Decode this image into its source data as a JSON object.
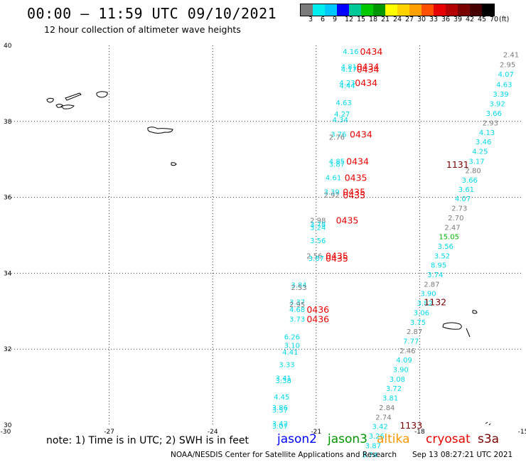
{
  "title": "00:00 – 11:59 UTC 09/10/2021",
  "subtitle": "12 hour collection of altimeter wave heights",
  "legend": {
    "labels": [
      "3",
      "6",
      "9",
      "12",
      "15",
      "18",
      "21",
      "24",
      "27",
      "30",
      "33",
      "36",
      "39",
      "42",
      "45",
      "70",
      "(ft)"
    ],
    "colors": [
      "#7a7a7a",
      "#00eeee",
      "#00c8ff",
      "#0000ff",
      "#00c896",
      "#00c800",
      "#009600",
      "#ffff00",
      "#ffd200",
      "#ffa000",
      "#ff5000",
      "#e60000",
      "#b40000",
      "#780000",
      "#460000",
      "#000000"
    ]
  },
  "note": "note:  1) Time is in UTC;  2) SWH is in feet",
  "satellites": [
    {
      "name": "jason2",
      "color": "#0000ff"
    },
    {
      "name": "jason3",
      "color": "#009600"
    },
    {
      "name": "altika",
      "color": "#ff9600"
    },
    {
      "name": "cryosat",
      "color": "#e60000"
    },
    {
      "name": "s3a",
      "color": "#780000"
    }
  ],
  "credit": "NOAA/NESDIS Center for Satellite Applications and Research",
  "timestamp": "Sep 13 08:27:21 UTC 2021",
  "chart_data": {
    "type": "scatter",
    "xlim": [
      -30,
      -15
    ],
    "ylim": [
      30,
      40
    ],
    "x_ticks": [
      -30,
      -27,
      -24,
      -21,
      -18,
      -15
    ],
    "y_ticks": [
      30,
      32,
      34,
      36,
      38,
      40
    ],
    "grid": true,
    "colors": {
      "cyan": "#00d8e8",
      "gray": "#7a7a7a",
      "green": "#00b400",
      "red": "#e60000",
      "darkred": "#780000"
    },
    "wave_heights": [
      {
        "lon": -20.0,
        "lat": 39.85,
        "v": "4.16",
        "c": "cyan"
      },
      {
        "lon": -20.05,
        "lat": 39.45,
        "v": "4.81",
        "c": "cyan"
      },
      {
        "lon": -20.05,
        "lat": 39.38,
        "v": "4.17",
        "c": "cyan"
      },
      {
        "lon": -20.1,
        "lat": 39.03,
        "v": "4.23",
        "c": "cyan"
      },
      {
        "lon": -20.1,
        "lat": 38.95,
        "v": "4.44",
        "c": "cyan"
      },
      {
        "lon": -20.2,
        "lat": 38.5,
        "v": "4.63",
        "c": "cyan"
      },
      {
        "lon": -20.25,
        "lat": 38.2,
        "v": "4.27",
        "c": "cyan"
      },
      {
        "lon": -20.3,
        "lat": 38.05,
        "v": "4.34",
        "c": "cyan"
      },
      {
        "lon": -20.35,
        "lat": 37.67,
        "v": "3.76",
        "c": "cyan"
      },
      {
        "lon": -20.4,
        "lat": 37.59,
        "v": "2.76",
        "c": "gray"
      },
      {
        "lon": -20.4,
        "lat": 36.96,
        "v": "4.85",
        "c": "cyan"
      },
      {
        "lon": -20.4,
        "lat": 36.88,
        "v": "3.87",
        "c": "cyan"
      },
      {
        "lon": -20.5,
        "lat": 36.53,
        "v": "4.61",
        "c": "cyan"
      },
      {
        "lon": -20.55,
        "lat": 36.15,
        "v": "3.39",
        "c": "cyan"
      },
      {
        "lon": -20.55,
        "lat": 36.07,
        "v": "2.92",
        "c": "gray"
      },
      {
        "lon": -20.95,
        "lat": 35.4,
        "v": "2.98",
        "c": "gray"
      },
      {
        "lon": -20.95,
        "lat": 35.3,
        "v": "3.78",
        "c": "cyan"
      },
      {
        "lon": -20.95,
        "lat": 35.22,
        "v": "3.24",
        "c": "cyan"
      },
      {
        "lon": -20.95,
        "lat": 34.87,
        "v": "3.56",
        "c": "cyan"
      },
      {
        "lon": -21.05,
        "lat": 34.47,
        "v": "2.56",
        "c": "gray"
      },
      {
        "lon": -21.0,
        "lat": 34.4,
        "v": "3.87",
        "c": "cyan"
      },
      {
        "lon": -21.5,
        "lat": 33.7,
        "v": "3.84",
        "c": "cyan"
      },
      {
        "lon": -21.5,
        "lat": 33.63,
        "v": "2.53",
        "c": "gray"
      },
      {
        "lon": -21.55,
        "lat": 33.25,
        "v": "3.37",
        "c": "cyan"
      },
      {
        "lon": -21.55,
        "lat": 33.18,
        "v": "2.95",
        "c": "gray"
      },
      {
        "lon": -21.55,
        "lat": 33.05,
        "v": "4.68",
        "c": "cyan"
      },
      {
        "lon": -21.55,
        "lat": 32.8,
        "v": "3.73",
        "c": "cyan"
      },
      {
        "lon": -21.7,
        "lat": 32.33,
        "v": "6.26",
        "c": "cyan"
      },
      {
        "lon": -21.7,
        "lat": 32.11,
        "v": "3.10",
        "c": "cyan"
      },
      {
        "lon": -21.75,
        "lat": 31.93,
        "v": "4.41",
        "c": "cyan"
      },
      {
        "lon": -21.85,
        "lat": 31.6,
        "v": "3.33",
        "c": "cyan"
      },
      {
        "lon": -21.95,
        "lat": 31.25,
        "v": "3.41",
        "c": "cyan"
      },
      {
        "lon": -21.95,
        "lat": 31.18,
        "v": "3.38",
        "c": "cyan"
      },
      {
        "lon": -22.0,
        "lat": 30.75,
        "v": "4.45",
        "c": "cyan"
      },
      {
        "lon": -22.05,
        "lat": 30.47,
        "v": "3.86",
        "c": "cyan"
      },
      {
        "lon": -22.05,
        "lat": 30.4,
        "v": "3.57",
        "c": "cyan"
      },
      {
        "lon": -22.05,
        "lat": 30.05,
        "v": "3.42",
        "c": "cyan"
      },
      {
        "lon": -22.05,
        "lat": 29.98,
        "v": "3.07",
        "c": "cyan"
      },
      {
        "lon": -15.35,
        "lat": 39.77,
        "v": "2.41",
        "c": "gray"
      },
      {
        "lon": -15.45,
        "lat": 39.5,
        "v": "2.95",
        "c": "gray"
      },
      {
        "lon": -15.5,
        "lat": 39.25,
        "v": "4.07",
        "c": "cyan"
      },
      {
        "lon": -15.55,
        "lat": 38.98,
        "v": "4.63",
        "c": "cyan"
      },
      {
        "lon": -15.65,
        "lat": 38.73,
        "v": "3.39",
        "c": "cyan"
      },
      {
        "lon": -15.75,
        "lat": 38.47,
        "v": "3.92",
        "c": "cyan"
      },
      {
        "lon": -15.85,
        "lat": 38.22,
        "v": "3.66",
        "c": "cyan"
      },
      {
        "lon": -15.95,
        "lat": 37.97,
        "v": "2.93",
        "c": "gray"
      },
      {
        "lon": -16.05,
        "lat": 37.72,
        "v": "4.13",
        "c": "cyan"
      },
      {
        "lon": -16.15,
        "lat": 37.47,
        "v": "3.46",
        "c": "cyan"
      },
      {
        "lon": -16.25,
        "lat": 37.22,
        "v": "4.25",
        "c": "cyan"
      },
      {
        "lon": -16.35,
        "lat": 36.96,
        "v": "3.17",
        "c": "cyan"
      },
      {
        "lon": -16.45,
        "lat": 36.71,
        "v": "2.80",
        "c": "gray"
      },
      {
        "lon": -16.55,
        "lat": 36.46,
        "v": "3.66",
        "c": "cyan"
      },
      {
        "lon": -16.65,
        "lat": 36.22,
        "v": "3.61",
        "c": "cyan"
      },
      {
        "lon": -16.75,
        "lat": 35.97,
        "v": "4.07",
        "c": "cyan"
      },
      {
        "lon": -16.85,
        "lat": 35.72,
        "v": "2.73",
        "c": "gray"
      },
      {
        "lon": -16.95,
        "lat": 35.47,
        "v": "2.70",
        "c": "gray"
      },
      {
        "lon": -17.05,
        "lat": 35.22,
        "v": "2.47",
        "c": "gray"
      },
      {
        "lon": -17.15,
        "lat": 34.97,
        "v": "15.05",
        "c": "green"
      },
      {
        "lon": -17.25,
        "lat": 34.72,
        "v": "3.56",
        "c": "cyan"
      },
      {
        "lon": -17.35,
        "lat": 34.47,
        "v": "3.52",
        "c": "cyan"
      },
      {
        "lon": -17.45,
        "lat": 34.22,
        "v": "8.95",
        "c": "cyan"
      },
      {
        "lon": -17.55,
        "lat": 33.97,
        "v": "3.74",
        "c": "cyan"
      },
      {
        "lon": -17.65,
        "lat": 33.72,
        "v": "2.87",
        "c": "gray"
      },
      {
        "lon": -17.75,
        "lat": 33.47,
        "v": "3.90",
        "c": "cyan"
      },
      {
        "lon": -17.85,
        "lat": 33.22,
        "v": "3.82",
        "c": "cyan"
      },
      {
        "lon": -17.95,
        "lat": 32.97,
        "v": "3.06",
        "c": "cyan"
      },
      {
        "lon": -18.05,
        "lat": 32.72,
        "v": "3.75",
        "c": "cyan"
      },
      {
        "lon": -18.15,
        "lat": 32.47,
        "v": "2.87",
        "c": "gray"
      },
      {
        "lon": -18.25,
        "lat": 32.22,
        "v": "7.77",
        "c": "cyan"
      },
      {
        "lon": -18.35,
        "lat": 31.97,
        "v": "2.46",
        "c": "gray"
      },
      {
        "lon": -18.45,
        "lat": 31.72,
        "v": "4.09",
        "c": "cyan"
      },
      {
        "lon": -18.55,
        "lat": 31.47,
        "v": "3.90",
        "c": "cyan"
      },
      {
        "lon": -18.65,
        "lat": 31.22,
        "v": "3.08",
        "c": "cyan"
      },
      {
        "lon": -18.75,
        "lat": 30.97,
        "v": "3.72",
        "c": "cyan"
      },
      {
        "lon": -18.85,
        "lat": 30.72,
        "v": "3.81",
        "c": "cyan"
      },
      {
        "lon": -18.95,
        "lat": 30.47,
        "v": "2.84",
        "c": "gray"
      },
      {
        "lon": -19.05,
        "lat": 30.22,
        "v": "2.74",
        "c": "gray"
      },
      {
        "lon": -19.15,
        "lat": 29.97,
        "v": "3.42",
        "c": "cyan"
      },
      {
        "lon": -19.25,
        "lat": 29.72,
        "v": "3.26",
        "c": "cyan"
      },
      {
        "lon": -19.35,
        "lat": 29.47,
        "v": "3.87",
        "c": "cyan"
      },
      {
        "lon": -19.45,
        "lat": 29.22,
        "v": "3.74",
        "c": "cyan"
      }
    ],
    "time_labels": [
      {
        "lon": -19.4,
        "lat": 39.85,
        "v": "0434",
        "c": "red"
      },
      {
        "lon": -19.5,
        "lat": 39.45,
        "v": "0434",
        "c": "red"
      },
      {
        "lon": -19.5,
        "lat": 39.38,
        "v": "0434",
        "c": "red"
      },
      {
        "lon": -19.55,
        "lat": 39.03,
        "v": "0434",
        "c": "red"
      },
      {
        "lon": -19.7,
        "lat": 37.67,
        "v": "0434",
        "c": "red"
      },
      {
        "lon": -19.8,
        "lat": 36.96,
        "v": "0434",
        "c": "red"
      },
      {
        "lon": -19.85,
        "lat": 36.53,
        "v": "0435",
        "c": "red"
      },
      {
        "lon": -19.9,
        "lat": 36.15,
        "v": "0435",
        "c": "red"
      },
      {
        "lon": -19.9,
        "lat": 36.07,
        "v": "0435",
        "c": "red"
      },
      {
        "lon": -20.1,
        "lat": 35.4,
        "v": "0435",
        "c": "red"
      },
      {
        "lon": -20.4,
        "lat": 34.47,
        "v": "0435",
        "c": "red"
      },
      {
        "lon": -20.4,
        "lat": 34.4,
        "v": "0435",
        "c": "red"
      },
      {
        "lon": -20.95,
        "lat": 33.05,
        "v": "0436",
        "c": "red"
      },
      {
        "lon": -20.95,
        "lat": 32.8,
        "v": "0436",
        "c": "red"
      },
      {
        "lon": -16.9,
        "lat": 36.87,
        "v": "1131",
        "c": "darkred"
      },
      {
        "lon": -17.55,
        "lat": 33.25,
        "v": "1132",
        "c": "darkred"
      },
      {
        "lon": -18.25,
        "lat": 30.0,
        "v": "1133",
        "c": "darkred"
      }
    ]
  }
}
